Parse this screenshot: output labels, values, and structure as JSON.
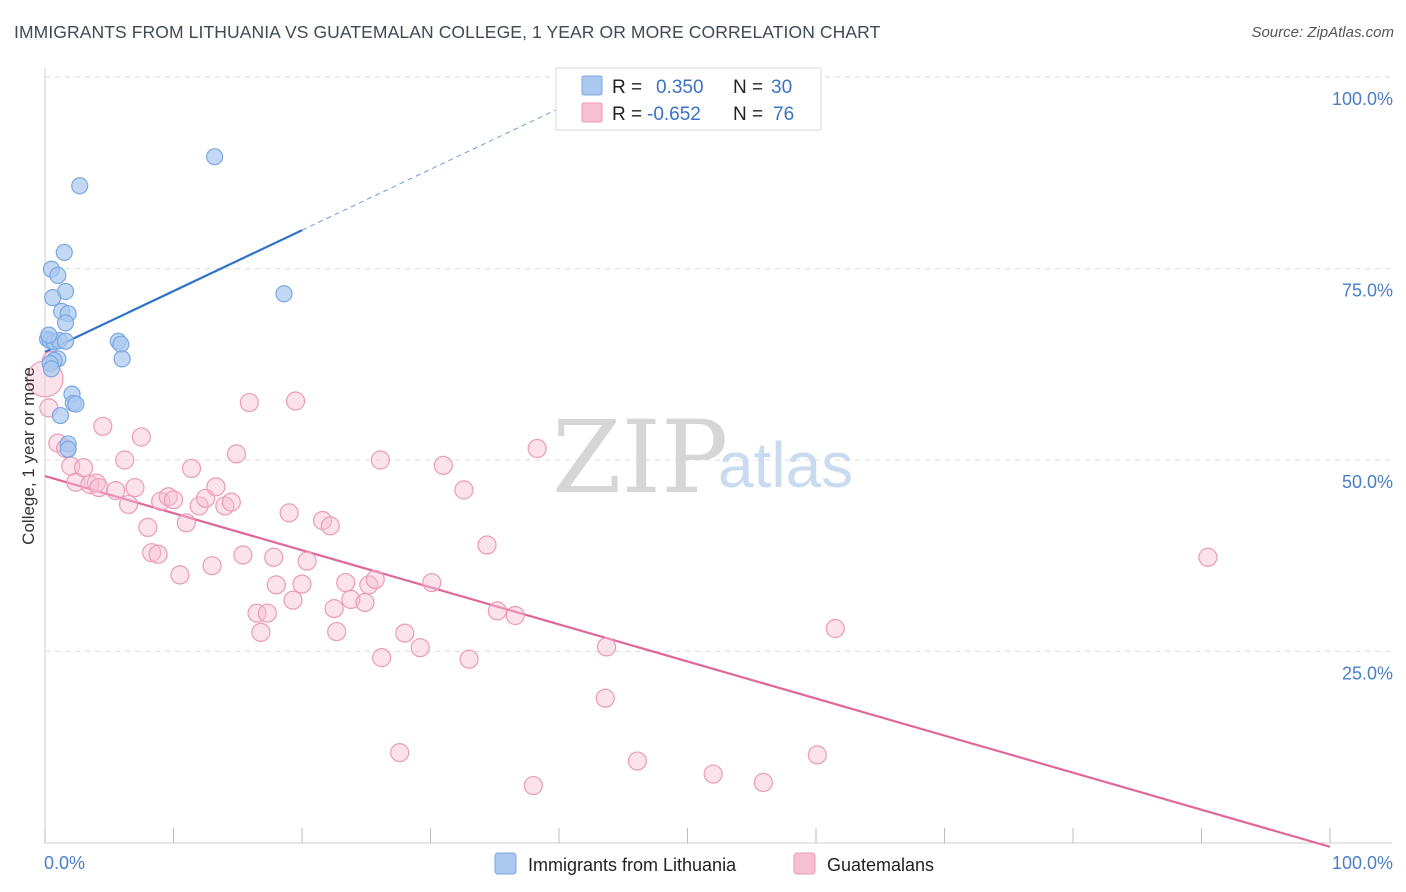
{
  "title": "IMMIGRANTS FROM LITHUANIA VS GUATEMALAN COLLEGE, 1 YEAR OR MORE CORRELATION CHART",
  "source": "Source: ZipAtlas.com",
  "watermark": {
    "zip": "ZIP",
    "atlas": "atlas"
  },
  "colors": {
    "blue_fill": "#aac8f0",
    "blue_stroke": "#7aa7e0",
    "blue_line": "#2f72c9",
    "pink_fill": "#f7bfd2",
    "pink_stroke": "#ec9ab7",
    "pink_line": "#e0679a",
    "grid": "#dedede",
    "tick_text": "#4a7ec8"
  },
  "chart_data": {
    "type": "scatter",
    "ylabel": "College, 1 year or more",
    "x_tick_labels": [
      "0.0%",
      "100.0%"
    ],
    "y_tick_labels": [
      "25.0%",
      "50.0%",
      "75.0%",
      "100.0%"
    ],
    "xlim": [
      0,
      100
    ],
    "ylim": [
      0,
      100
    ],
    "grid": true,
    "legend_position": "bottom",
    "stats": [
      {
        "r_label": "R =",
        "r_value": "0.350",
        "n_label": "N =",
        "n_value": "30"
      },
      {
        "r_label": "R =",
        "r_value": "-0.652",
        "n_label": "N =",
        "n_value": "76"
      }
    ],
    "series": [
      {
        "name": "Immigrants from Lithuania",
        "color": "#aac8f0",
        "trend": {
          "x": [
            0,
            20
          ],
          "y": [
            64.1,
            80.0
          ],
          "dashed_to": [
            40,
            95.9
          ]
        },
        "points": [
          [
            13.2,
            89.6
          ],
          [
            2.7,
            85.8
          ],
          [
            1.5,
            77.1
          ],
          [
            0.5,
            74.9
          ],
          [
            1.0,
            74.1
          ],
          [
            1.6,
            72.0
          ],
          [
            0.6,
            71.2
          ],
          [
            18.6,
            71.7
          ],
          [
            1.3,
            69.4
          ],
          [
            1.8,
            69.1
          ],
          [
            1.6,
            67.9
          ],
          [
            0.2,
            65.8
          ],
          [
            0.4,
            65.6
          ],
          [
            0.7,
            65.4
          ],
          [
            1.1,
            65.6
          ],
          [
            1.6,
            65.5
          ],
          [
            5.7,
            65.5
          ],
          [
            5.9,
            65.1
          ],
          [
            1.0,
            63.2
          ],
          [
            0.7,
            63.0
          ],
          [
            0.4,
            62.6
          ],
          [
            0.5,
            61.9
          ],
          [
            6.0,
            63.2
          ],
          [
            2.1,
            58.6
          ],
          [
            2.2,
            57.4
          ],
          [
            2.4,
            57.3
          ],
          [
            1.2,
            55.8
          ],
          [
            1.8,
            52.1
          ],
          [
            1.8,
            51.4
          ],
          [
            0.3,
            66.3
          ]
        ]
      },
      {
        "name": "Guatemalans",
        "color": "#f7bfd2",
        "trend": {
          "x": [
            0,
            100
          ],
          "y": [
            47.9,
            -0.5
          ]
        },
        "points": [
          [
            0.0,
            60.6
          ],
          [
            0.3,
            56.8
          ],
          [
            1.0,
            52.2
          ],
          [
            1.6,
            51.5
          ],
          [
            2.0,
            49.2
          ],
          [
            3.0,
            49.0
          ],
          [
            2.4,
            47.1
          ],
          [
            3.5,
            46.8
          ],
          [
            4.0,
            47.0
          ],
          [
            4.2,
            46.4
          ],
          [
            5.5,
            46.0
          ],
          [
            4.5,
            54.4
          ],
          [
            6.2,
            50.0
          ],
          [
            6.5,
            44.2
          ],
          [
            7.0,
            46.4
          ],
          [
            7.5,
            53.0
          ],
          [
            8.0,
            41.2
          ],
          [
            8.3,
            37.9
          ],
          [
            8.8,
            37.7
          ],
          [
            9.0,
            44.6
          ],
          [
            9.6,
            45.2
          ],
          [
            10.0,
            44.8
          ],
          [
            10.5,
            35.0
          ],
          [
            11.0,
            41.8
          ],
          [
            11.4,
            48.9
          ],
          [
            12.0,
            44.0
          ],
          [
            12.5,
            45.0
          ],
          [
            13.0,
            36.2
          ],
          [
            13.3,
            46.5
          ],
          [
            14.0,
            44.0
          ],
          [
            14.5,
            44.5
          ],
          [
            14.9,
            50.8
          ],
          [
            15.4,
            37.6
          ],
          [
            15.9,
            57.5
          ],
          [
            16.5,
            30.0
          ],
          [
            16.8,
            27.5
          ],
          [
            17.3,
            30.0
          ],
          [
            17.8,
            37.3
          ],
          [
            18.0,
            33.7
          ],
          [
            19.0,
            43.1
          ],
          [
            19.3,
            31.7
          ],
          [
            19.5,
            57.7
          ],
          [
            20.0,
            33.8
          ],
          [
            20.4,
            36.8
          ],
          [
            21.6,
            42.1
          ],
          [
            22.2,
            41.4
          ],
          [
            22.5,
            30.6
          ],
          [
            22.7,
            27.6
          ],
          [
            23.4,
            34.0
          ],
          [
            23.8,
            31.8
          ],
          [
            24.9,
            31.4
          ],
          [
            25.2,
            33.7
          ],
          [
            25.7,
            34.4
          ],
          [
            26.1,
            50.0
          ],
          [
            26.2,
            24.2
          ],
          [
            27.6,
            11.8
          ],
          [
            28.0,
            27.4
          ],
          [
            29.2,
            25.5
          ],
          [
            30.1,
            34.0
          ],
          [
            31.0,
            49.3
          ],
          [
            32.6,
            46.1
          ],
          [
            33.0,
            24.0
          ],
          [
            34.4,
            38.9
          ],
          [
            35.2,
            30.3
          ],
          [
            36.6,
            29.7
          ],
          [
            38.0,
            7.5
          ],
          [
            38.3,
            51.5
          ],
          [
            43.7,
            25.6
          ],
          [
            43.6,
            18.9
          ],
          [
            46.1,
            10.7
          ],
          [
            52.0,
            9.0
          ],
          [
            55.9,
            7.9
          ],
          [
            60.1,
            11.5
          ],
          [
            61.5,
            28.0
          ],
          [
            90.5,
            37.3
          ],
          [
            0.5,
            63.0
          ]
        ]
      }
    ]
  }
}
